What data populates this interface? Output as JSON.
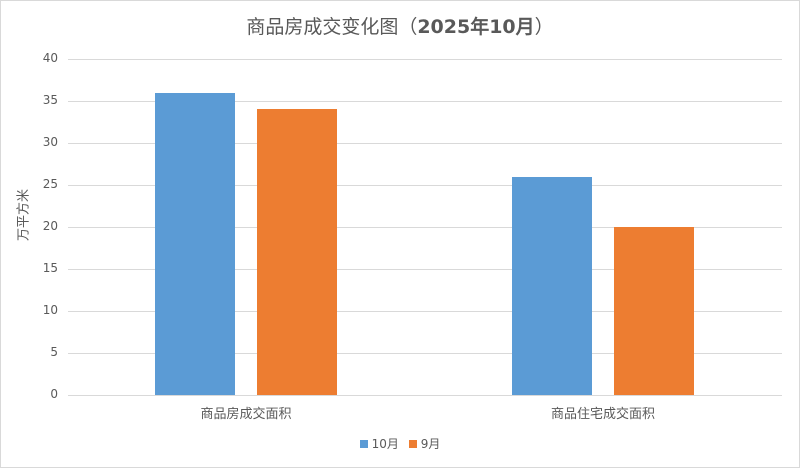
{
  "chart_data": {
    "type": "bar",
    "title": "商品房成交变化图（2025年10月）",
    "xlabel": "",
    "ylabel": "万平方米",
    "ylim": [
      0,
      40
    ],
    "yticks": [
      0,
      5,
      10,
      15,
      20,
      25,
      30,
      35,
      40
    ],
    "grid": true,
    "legend_position": "bottom",
    "categories": [
      "商品房成交面积",
      "商品住宅成交面积"
    ],
    "series": [
      {
        "name": "10月",
        "color": "#5b9bd5",
        "values": [
          36,
          26
        ]
      },
      {
        "name": "9月",
        "color": "#ed7d31",
        "values": [
          34,
          20
        ]
      }
    ]
  },
  "title": {
    "main": "商品房成交变化图（",
    "bold": "2025年10月",
    "end": "）"
  },
  "yaxis": {
    "label": "万平方米",
    "ticks": [
      "40",
      "35",
      "30",
      "25",
      "20",
      "15",
      "10",
      "5",
      "0"
    ]
  },
  "xaxis": {
    "categories": [
      "商品房成交面积",
      "商品住宅成交面积"
    ]
  },
  "legend": [
    {
      "label": "10月",
      "color": "#5b9bd5"
    },
    {
      "label": "9月",
      "color": "#ed7d31"
    }
  ]
}
